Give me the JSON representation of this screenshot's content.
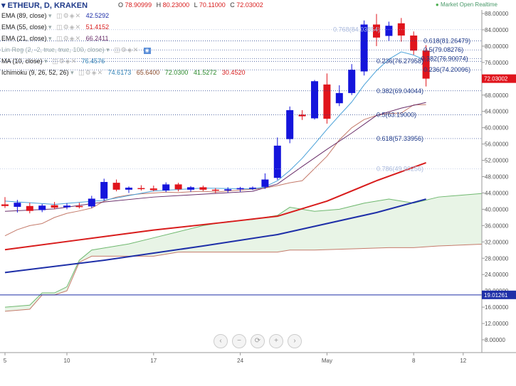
{
  "header": {
    "symbol": "ETHEUR, D, KRAKEN",
    "ohlc": [
      {
        "label": "O",
        "value": "78.90999"
      },
      {
        "label": "H",
        "value": "80.23000"
      },
      {
        "label": "L",
        "value": "70.11000"
      },
      {
        "label": "C",
        "value": "72.03002"
      }
    ],
    "market_status": "Market Open  Realtime",
    "market_dot_color": "#4caf50"
  },
  "indicators": [
    {
      "name": "EMA (89, close)",
      "values": [
        "42.5292"
      ],
      "colors": [
        "#1e2fa8"
      ]
    },
    {
      "name": "EMA (55, close)",
      "values": [
        "51.4152"
      ],
      "colors": [
        "#d81c1c"
      ]
    },
    {
      "name": "EMA (21, close)",
      "values": [
        "66.2411"
      ],
      "colors": [
        "#6a2f6a"
      ]
    },
    {
      "name": "Lin Reg (2, -2, true, true, 100, close)",
      "values": [],
      "colors": []
    },
    {
      "name": "MA (10, close)",
      "values": [
        "76.4576"
      ],
      "colors": [
        "#2b7fb5"
      ]
    },
    {
      "name": "Ichimoku (9, 26, 52, 26)",
      "values": [
        "74.6173",
        "65.6400",
        "72.0300",
        "41.5272",
        "30.4520"
      ],
      "colors": [
        "#2b7fb5",
        "#8a4a2a",
        "#2a8a2a",
        "#2a8a2a",
        "#d81c1c"
      ]
    }
  ],
  "nav": {
    "scroll_left": "‹",
    "zoom_out": "−",
    "reset": "⟳",
    "zoom_in": "+",
    "scroll_right": "›"
  },
  "colors": {
    "up": "#1414dc",
    "down": "#e0141c",
    "ema89": "#1e2fa8",
    "ema55": "#d81c1c",
    "ema21": "#6a2f6a",
    "ma10": "#48a0d8",
    "cloud": "#e8f4e6",
    "spanA": "#6fb86f",
    "spanB": "#c47a6a",
    "price_line": "#1e2fa8",
    "fib": "#1f3a8a"
  },
  "chart_data": {
    "type": "candlestick",
    "yaxis": {
      "range": [
        4,
        90
      ],
      "ticks": [
        "88.00000",
        "84.00000",
        "80.00000",
        "76.00000",
        "72.00000",
        "68.00000",
        "64.00000",
        "60.00000",
        "56.00000",
        "52.00000",
        "48.00000",
        "44.00000",
        "40.00000",
        "36.00000",
        "32.00000",
        "28.00000",
        "24.00000",
        "20.00000",
        "16.00000",
        "12.00000",
        "8.00000"
      ],
      "tick_values": [
        88,
        84,
        80,
        76,
        72,
        68,
        64,
        60,
        56,
        52,
        48,
        44,
        40,
        36,
        32,
        28,
        24,
        20,
        16,
        12,
        8
      ]
    },
    "xaxis": {
      "labels": [
        {
          "text": "5",
          "day": 0
        },
        {
          "text": "10",
          "day": 5
        },
        {
          "text": "17",
          "day": 12
        },
        {
          "text": "24",
          "day": 19
        },
        {
          "text": "May",
          "day": 26
        },
        {
          "text": "8",
          "day": 33
        },
        {
          "text": "12",
          "day": 37
        }
      ],
      "range": [
        0,
        39
      ]
    },
    "current_price_label": "72.03002",
    "price_line": {
      "value": 19.01261,
      "label": "19.01261"
    },
    "candles": [
      {
        "day": 0,
        "o": 41.2,
        "h": 43.0,
        "l": 40.3,
        "c": 40.8
      },
      {
        "day": 1,
        "o": 40.6,
        "h": 42.3,
        "l": 39.2,
        "c": 41.6
      },
      {
        "day": 2,
        "o": 40.8,
        "h": 41.6,
        "l": 39.0,
        "c": 39.6
      },
      {
        "day": 3,
        "o": 39.8,
        "h": 41.3,
        "l": 39.3,
        "c": 40.9
      },
      {
        "day": 4,
        "o": 41.0,
        "h": 41.8,
        "l": 40.0,
        "c": 40.4
      },
      {
        "day": 5,
        "o": 40.5,
        "h": 41.5,
        "l": 40.0,
        "c": 40.9
      },
      {
        "day": 6,
        "o": 40.8,
        "h": 41.6,
        "l": 40.2,
        "c": 40.6
      },
      {
        "day": 7,
        "o": 40.7,
        "h": 43.3,
        "l": 40.3,
        "c": 42.6
      },
      {
        "day": 8,
        "o": 42.6,
        "h": 47.5,
        "l": 42.1,
        "c": 46.7
      },
      {
        "day": 9,
        "o": 46.5,
        "h": 47.3,
        "l": 44.4,
        "c": 44.8
      },
      {
        "day": 10,
        "o": 44.8,
        "h": 45.6,
        "l": 44.0,
        "c": 45.3
      },
      {
        "day": 11,
        "o": 45.2,
        "h": 45.9,
        "l": 44.6,
        "c": 45.0
      },
      {
        "day": 12,
        "o": 45.1,
        "h": 45.8,
        "l": 44.4,
        "c": 44.7
      },
      {
        "day": 13,
        "o": 44.6,
        "h": 46.6,
        "l": 44.2,
        "c": 46.1
      },
      {
        "day": 14,
        "o": 46.1,
        "h": 46.5,
        "l": 44.4,
        "c": 44.9
      },
      {
        "day": 15,
        "o": 44.8,
        "h": 45.7,
        "l": 44.3,
        "c": 45.4
      },
      {
        "day": 16,
        "o": 45.4,
        "h": 45.8,
        "l": 44.5,
        "c": 44.8
      },
      {
        "day": 17,
        "o": 44.8,
        "h": 45.2,
        "l": 44.0,
        "c": 44.6
      },
      {
        "day": 18,
        "o": 44.6,
        "h": 45.4,
        "l": 44.1,
        "c": 44.9
      },
      {
        "day": 19,
        "o": 44.9,
        "h": 45.5,
        "l": 44.3,
        "c": 45.2
      },
      {
        "day": 20,
        "o": 45.2,
        "h": 45.6,
        "l": 44.7,
        "c": 45.3
      },
      {
        "day": 21,
        "o": 45.5,
        "h": 48.8,
        "l": 45.0,
        "c": 47.3
      },
      {
        "day": 22,
        "o": 47.7,
        "h": 57.6,
        "l": 47.2,
        "c": 55.6
      },
      {
        "day": 23,
        "o": 57.2,
        "h": 65.2,
        "l": 56.2,
        "c": 64.3
      },
      {
        "day": 24,
        "o": 63.2,
        "h": 64.3,
        "l": 61.9,
        "c": 62.8
      },
      {
        "day": 25,
        "o": 62.3,
        "h": 71.7,
        "l": 62.0,
        "c": 71.4
      },
      {
        "day": 26,
        "o": 70.6,
        "h": 73.3,
        "l": 61.0,
        "c": 62.2
      },
      {
        "day": 27,
        "o": 66.0,
        "h": 70.4,
        "l": 65.3,
        "c": 68.5
      },
      {
        "day": 28,
        "o": 68.5,
        "h": 75.6,
        "l": 68.0,
        "c": 74.2
      },
      {
        "day": 29,
        "o": 73.8,
        "h": 86.3,
        "l": 72.8,
        "c": 85.3
      },
      {
        "day": 30,
        "o": 85.3,
        "h": 87.9,
        "l": 80.0,
        "c": 82.1
      },
      {
        "day": 31,
        "o": 82.5,
        "h": 86.0,
        "l": 81.2,
        "c": 85.0
      },
      {
        "day": 32,
        "o": 85.6,
        "h": 86.9,
        "l": 81.1,
        "c": 82.6
      },
      {
        "day": 33,
        "o": 82.6,
        "h": 83.6,
        "l": 77.9,
        "c": 78.9
      },
      {
        "day": 34,
        "o": 78.9,
        "h": 80.23,
        "l": 70.11,
        "c": 72.03
      }
    ],
    "fibonacci": [
      {
        "label": "0.768(84.03854)",
        "value": 84.03854,
        "faded": true,
        "x_day": 26.5
      },
      {
        "label": "0.618(81.26479)",
        "value": 81.26479,
        "faded": false,
        "x_day": 33.8
      },
      {
        "label": "0.5(79.08276)",
        "value": 79.08276,
        "faded": false,
        "x_day": 33.8
      },
      {
        "label": "0.382(76.90074)",
        "value": 76.90074,
        "faded": false,
        "x_day": 33.6
      },
      {
        "label": "0.236(76.27958)",
        "value": 76.27958,
        "faded": false,
        "x_day": 30.0
      },
      {
        "label": "0.236(74.20096)",
        "value": 74.20096,
        "faded": false,
        "x_day": 33.8
      },
      {
        "label": "0.382(69.04044)",
        "value": 69.04044,
        "faded": false,
        "x_day": 30.0
      },
      {
        "label": "0.5(63.19000)",
        "value": 63.19,
        "faded": false,
        "x_day": 30.0
      },
      {
        "label": "0.618(57.33956)",
        "value": 57.33956,
        "faded": false,
        "x_day": 30.0
      },
      {
        "label": "0.786(49.90256)",
        "value": 49.90256,
        "faded": true,
        "x_day": 30.0
      }
    ],
    "ema89": {
      "x": [
        0,
        8,
        16,
        22,
        30,
        34
      ],
      "y": [
        24.5,
        27.5,
        31.0,
        33.8,
        39.2,
        42.5
      ]
    },
    "ema55": {
      "x": [
        0,
        6,
        12,
        18,
        22,
        26,
        30,
        34
      ],
      "y": [
        30.1,
        32.5,
        34.9,
        36.9,
        38.3,
        42.0,
        47.0,
        51.4
      ]
    },
    "ema21": {
      "x": [
        0,
        4,
        8,
        12,
        16,
        20,
        22,
        24,
        26,
        28,
        30,
        32,
        34
      ],
      "y": [
        39.5,
        40.1,
        41.8,
        43.0,
        43.7,
        44.4,
        46.2,
        50.5,
        54.7,
        58.7,
        63.0,
        64.8,
        66.2
      ]
    },
    "ma10": {
      "x": [
        0,
        4,
        8,
        12,
        16,
        20,
        21,
        22,
        23,
        24,
        25,
        26,
        27,
        28,
        29,
        30,
        31,
        32,
        33,
        34
      ],
      "y": [
        42.0,
        41.2,
        42.2,
        44.5,
        45.2,
        45.0,
        45.5,
        47.0,
        49.5,
        52.5,
        56.0,
        59.6,
        63.0,
        66.3,
        70.5,
        74.0,
        76.8,
        78.6,
        77.8,
        76.5
      ]
    },
    "cloud": {
      "x": [
        0,
        2,
        3,
        4,
        5,
        6,
        7,
        8,
        10,
        12,
        14,
        16,
        18,
        20,
        22,
        23,
        25,
        27,
        29,
        31,
        33,
        35,
        39
      ],
      "spanA": [
        16.0,
        16.5,
        19.5,
        19.5,
        21.0,
        27.5,
        30.0,
        30.5,
        31.5,
        33.0,
        34.5,
        36.0,
        37.0,
        37.5,
        38.5,
        40.5,
        39.5,
        40.0,
        41.5,
        42.5,
        41.5,
        43.0,
        44.0
      ],
      "spanB": [
        15.0,
        15.5,
        19.0,
        19.0,
        20.0,
        27.0,
        28.5,
        28.5,
        28.5,
        28.5,
        29.5,
        29.5,
        29.5,
        29.5,
        29.5,
        30.0,
        30.0,
        30.2,
        30.4,
        30.6,
        30.6,
        31.0,
        31.5
      ]
    },
    "chikou": {
      "x": [
        0,
        1,
        2,
        3,
        4,
        5,
        6,
        7,
        8,
        9,
        10,
        11,
        12,
        13,
        14,
        15,
        16,
        17,
        18,
        19,
        20,
        21,
        22,
        23,
        24,
        25,
        26,
        27,
        28,
        29,
        30,
        31,
        32,
        33,
        34
      ],
      "y": [
        33.5,
        35.0,
        36.0,
        36.5,
        38.0,
        39.0,
        39.6,
        40.3,
        42.0,
        43.0,
        43.5,
        43.8,
        44.0,
        44.2,
        44.1,
        44.3,
        44.4,
        44.2,
        44.5,
        44.7,
        44.9,
        45.2,
        45.8,
        46.5,
        47.0,
        50.0,
        53.0,
        57.0,
        60.0,
        62.0,
        63.0,
        63.5,
        63.6,
        65.6,
        65.64
      ]
    }
  }
}
